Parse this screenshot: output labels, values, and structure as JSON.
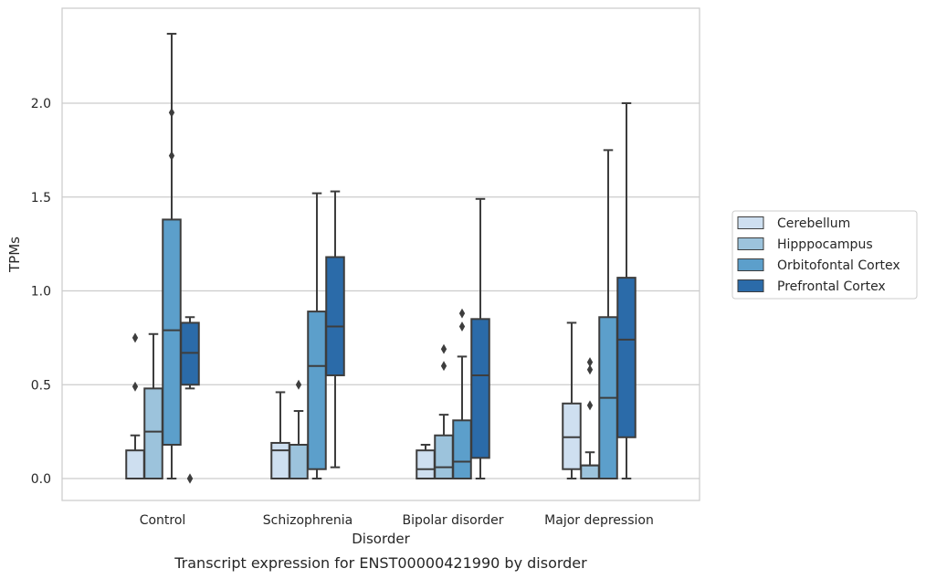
{
  "chart_data": {
    "type": "box",
    "caption": "Transcript expression for ENST00000421990 by disorder",
    "xlabel": "Disorder",
    "ylabel": "TPMs",
    "ylim": [
      -0.11,
      2.5
    ],
    "yticks": [
      0.0,
      0.5,
      1.0,
      1.5,
      2.0
    ],
    "ytick_labels": [
      "0.0",
      "0.5",
      "1.0",
      "1.5",
      "2.0"
    ],
    "grid": "horizontal",
    "legend_position": "right",
    "categories": [
      "Control",
      "Schizophrenia",
      "Bipolar disorder",
      "Major depression"
    ],
    "series": [
      {
        "name": "Cerebellum",
        "color": "#cedff0",
        "boxes": [
          {
            "whisker_low": 0.0,
            "q1": 0.0,
            "median": 0.0,
            "q3": 0.15,
            "whisker_high": 0.23,
            "outliers": [
              0.49,
              0.75
            ]
          },
          {
            "whisker_low": 0.0,
            "q1": 0.0,
            "median": 0.15,
            "q3": 0.19,
            "whisker_high": 0.46,
            "outliers": []
          },
          {
            "whisker_low": 0.0,
            "q1": 0.0,
            "median": 0.05,
            "q3": 0.15,
            "whisker_high": 0.18,
            "outliers": []
          },
          {
            "whisker_low": 0.0,
            "q1": 0.05,
            "median": 0.22,
            "q3": 0.4,
            "whisker_high": 0.83,
            "outliers": []
          }
        ]
      },
      {
        "name": "Hipppocampus",
        "color": "#9cc3dc",
        "boxes": [
          {
            "whisker_low": 0.0,
            "q1": 0.0,
            "median": 0.25,
            "q3": 0.48,
            "whisker_high": 0.77,
            "outliers": []
          },
          {
            "whisker_low": 0.0,
            "q1": 0.0,
            "median": 0.18,
            "q3": 0.18,
            "whisker_high": 0.36,
            "outliers": [
              0.5
            ]
          },
          {
            "whisker_low": 0.0,
            "q1": 0.0,
            "median": 0.06,
            "q3": 0.23,
            "whisker_high": 0.34,
            "outliers": [
              0.6,
              0.69
            ]
          },
          {
            "whisker_low": 0.0,
            "q1": 0.0,
            "median": 0.07,
            "q3": 0.07,
            "whisker_high": 0.14,
            "outliers": [
              0.39,
              0.58,
              0.62
            ]
          }
        ]
      },
      {
        "name": "Orbitofontal Cortex",
        "color": "#5c9fcb",
        "boxes": [
          {
            "whisker_low": 0.0,
            "q1": 0.18,
            "median": 0.79,
            "q3": 1.38,
            "whisker_high": 2.37,
            "outliers": [
              1.72,
              1.95
            ]
          },
          {
            "whisker_low": 0.0,
            "q1": 0.05,
            "median": 0.6,
            "q3": 0.89,
            "whisker_high": 1.52,
            "outliers": []
          },
          {
            "whisker_low": 0.0,
            "q1": 0.0,
            "median": 0.09,
            "q3": 0.31,
            "whisker_high": 0.65,
            "outliers": [
              0.81,
              0.88
            ]
          },
          {
            "whisker_low": 0.0,
            "q1": 0.0,
            "median": 0.43,
            "q3": 0.86,
            "whisker_high": 1.75,
            "outliers": []
          }
        ]
      },
      {
        "name": "Prefrontal Cortex",
        "color": "#2b6ba9",
        "boxes": [
          {
            "whisker_low": 0.48,
            "q1": 0.5,
            "median": 0.67,
            "q3": 0.83,
            "whisker_high": 0.86,
            "outliers": [
              0.0,
              0.0
            ]
          },
          {
            "whisker_low": 0.06,
            "q1": 0.55,
            "median": 0.81,
            "q3": 1.18,
            "whisker_high": 1.53,
            "outliers": []
          },
          {
            "whisker_low": 0.0,
            "q1": 0.11,
            "median": 0.55,
            "q3": 0.85,
            "whisker_high": 1.49,
            "outliers": []
          },
          {
            "whisker_low": 0.0,
            "q1": 0.22,
            "median": 0.74,
            "q3": 1.07,
            "whisker_high": 2.0,
            "outliers": []
          }
        ]
      }
    ]
  }
}
